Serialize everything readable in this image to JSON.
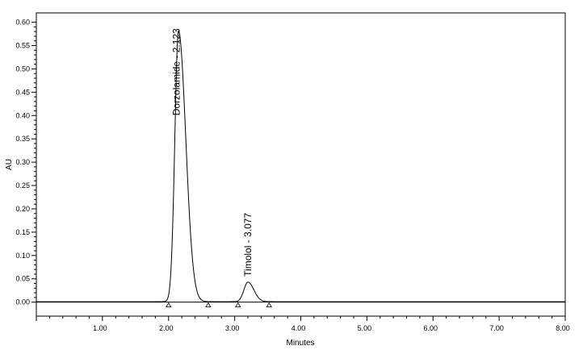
{
  "chart_data": {
    "type": "line",
    "xlabel": "Minutes",
    "ylabel": "AU",
    "xlim": [
      0,
      8
    ],
    "ylim": [
      -0.03,
      0.62
    ],
    "x_ticks": [
      "1.00",
      "2.00",
      "3.00",
      "4.00",
      "5.00",
      "6.00",
      "7.00",
      "8.00"
    ],
    "y_ticks": [
      "0.00",
      "0.05",
      "0.10",
      "0.15",
      "0.20",
      "0.25",
      "0.30",
      "0.35",
      "0.40",
      "0.45",
      "0.50",
      "0.55",
      "0.60"
    ],
    "x_minor_step": 0.2,
    "y_minor_step": 0.01,
    "baseline": 0.0,
    "peaks": [
      {
        "label": "Dorzolamide - 2.123",
        "retention_time": 2.123,
        "apex_time": 2.15,
        "height": 0.58,
        "start": 2.0,
        "end": 2.6,
        "label_x": 2.17,
        "label_y": 0.4
      },
      {
        "label": "Timolol - 3.077",
        "retention_time": 3.077,
        "apex_time": 3.2,
        "height": 0.042,
        "start": 3.05,
        "end": 3.52,
        "label_x": 3.25,
        "label_y": 0.055
      }
    ],
    "integration_markers": [
      2.0,
      2.6,
      3.05,
      3.52
    ],
    "grid": false
  }
}
